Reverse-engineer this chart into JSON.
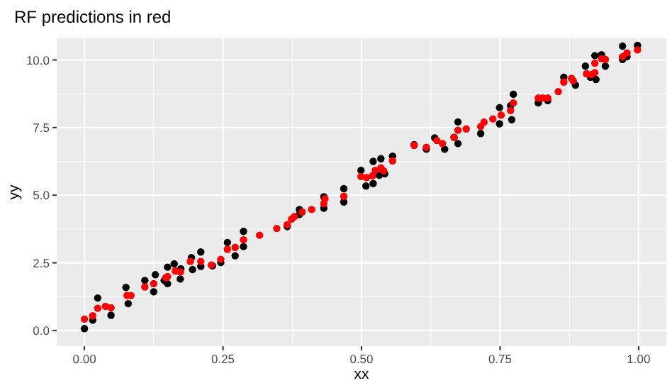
{
  "chart_data": {
    "type": "scatter",
    "title": "RF predictions in red",
    "xlabel": "xx",
    "ylabel": "yy",
    "xlim": [
      -0.05,
      1.05
    ],
    "ylim": [
      -0.58,
      10.8
    ],
    "xticks": [
      {
        "value": 0,
        "label": "0.00"
      },
      {
        "value": 0.25,
        "label": "0.25"
      },
      {
        "value": 0.5,
        "label": "0.50"
      },
      {
        "value": 0.75,
        "label": "0.75"
      },
      {
        "value": 1,
        "label": "1.00"
      }
    ],
    "yticks": [
      {
        "value": 0,
        "label": "0.0"
      },
      {
        "value": 2.5,
        "label": "2.5"
      },
      {
        "value": 5,
        "label": "5.0"
      },
      {
        "value": 7.5,
        "label": "7.5"
      },
      {
        "value": 10,
        "label": "10.0"
      }
    ],
    "grid": true,
    "marker": "circle",
    "series": [
      {
        "color": "#000000",
        "x": [
          0.0,
          0.015,
          0.024,
          0.048,
          0.075,
          0.079,
          0.109,
          0.125,
          0.128,
          0.144,
          0.15,
          0.15,
          0.162,
          0.173,
          0.174,
          0.193,
          0.195,
          0.21,
          0.21,
          0.231,
          0.246,
          0.258,
          0.272,
          0.287,
          0.287,
          0.366,
          0.388,
          0.388,
          0.432,
          0.432,
          0.468,
          0.468,
          0.499,
          0.508,
          0.521,
          0.521,
          0.532,
          0.535,
          0.542,
          0.556,
          0.595,
          0.617,
          0.632,
          0.65,
          0.667,
          0.674,
          0.674,
          0.715,
          0.749,
          0.749,
          0.769,
          0.771,
          0.774,
          0.819,
          0.836,
          0.865,
          0.886,
          0.904,
          0.913,
          0.921,
          0.923,
          0.933,
          0.94,
          0.971,
          0.971,
          0.979,
          0.998
        ],
        "values": [
          0.07,
          0.38,
          1.2,
          0.56,
          1.59,
          0.99,
          1.85,
          1.43,
          2.06,
          1.85,
          2.34,
          1.73,
          2.46,
          1.9,
          2.28,
          2.69,
          2.25,
          2.9,
          2.37,
          2.39,
          2.51,
          3.25,
          2.76,
          3.66,
          3.1,
          3.84,
          4.47,
          4.29,
          4.94,
          4.52,
          5.24,
          4.75,
          5.92,
          5.34,
          6.25,
          5.43,
          5.74,
          6.35,
          5.79,
          6.44,
          6.87,
          6.7,
          7.12,
          6.7,
          7.14,
          7.71,
          6.91,
          7.28,
          8.24,
          7.64,
          8.31,
          7.79,
          8.73,
          8.41,
          8.5,
          9.36,
          9.07,
          9.77,
          9.36,
          10.16,
          9.28,
          10.19,
          9.77,
          10.51,
          10.02,
          10.12,
          10.54
        ]
      },
      {
        "color": "#ff0000",
        "x": [
          0.0,
          0.015,
          0.024,
          0.038,
          0.048,
          0.077,
          0.084,
          0.109,
          0.125,
          0.147,
          0.15,
          0.164,
          0.173,
          0.191,
          0.21,
          0.229,
          0.246,
          0.258,
          0.272,
          0.287,
          0.316,
          0.347,
          0.366,
          0.374,
          0.379,
          0.393,
          0.41,
          0.432,
          0.434,
          0.468,
          0.499,
          0.509,
          0.52,
          0.525,
          0.535,
          0.54,
          0.556,
          0.595,
          0.617,
          0.636,
          0.646,
          0.667,
          0.674,
          0.689,
          0.715,
          0.721,
          0.737,
          0.752,
          0.769,
          0.774,
          0.819,
          0.827,
          0.836,
          0.855,
          0.865,
          0.879,
          0.882,
          0.906,
          0.915,
          0.921,
          0.921,
          0.933,
          0.94,
          0.971,
          0.979,
          0.998
        ],
        "values": [
          0.42,
          0.54,
          0.82,
          0.89,
          0.84,
          1.29,
          1.29,
          1.61,
          1.73,
          1.95,
          1.99,
          2.2,
          2.16,
          2.55,
          2.55,
          2.42,
          2.63,
          3.0,
          3.07,
          3.35,
          3.52,
          3.77,
          3.91,
          4.12,
          4.21,
          4.38,
          4.47,
          4.69,
          4.87,
          4.96,
          5.69,
          5.65,
          5.72,
          5.92,
          6.01,
          5.9,
          6.27,
          6.84,
          6.77,
          7.02,
          6.91,
          7.14,
          7.4,
          7.45,
          7.54,
          7.7,
          7.82,
          7.96,
          8.13,
          8.41,
          8.59,
          8.59,
          8.59,
          8.83,
          9.18,
          9.32,
          9.23,
          9.49,
          9.46,
          9.88,
          9.53,
          10.05,
          10.02,
          10.12,
          10.26,
          10.37
        ]
      }
    ]
  }
}
